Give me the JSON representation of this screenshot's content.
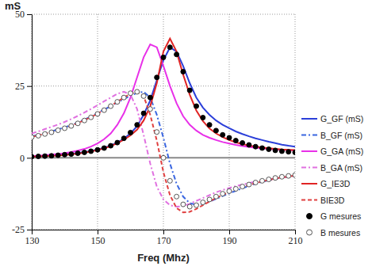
{
  "chart_data": {
    "type": "line",
    "x_label": "Freq (Mhz)",
    "y_label": "mS",
    "x": [
      130,
      132,
      134,
      136,
      138,
      140,
      142,
      144,
      146,
      148,
      150,
      152,
      154,
      156,
      158,
      160,
      162,
      164,
      166,
      168,
      170,
      172,
      174,
      176,
      178,
      180,
      182,
      184,
      186,
      188,
      190,
      192,
      194,
      196,
      198,
      200,
      202,
      204,
      206,
      208,
      210
    ],
    "xlim": [
      130,
      210
    ],
    "xticks": [
      130,
      150,
      170,
      190,
      210
    ],
    "ylim": [
      -25,
      50
    ],
    "yticks": [
      -25,
      0,
      25,
      50
    ],
    "grid": true,
    "legend": "right",
    "series": [
      {
        "name": "G_GF (mS)",
        "type": "line",
        "color": "#2b3fd9",
        "line_style": "solid",
        "values": [
          0.5,
          0.6,
          0.7,
          0.8,
          1.0,
          1.2,
          1.4,
          1.7,
          2.0,
          2.4,
          2.9,
          3.5,
          4.3,
          5.3,
          6.7,
          8.5,
          11,
          15,
          20,
          27,
          34,
          38.5,
          37,
          32,
          26,
          21,
          17.5,
          15,
          13,
          11.5,
          10.3,
          9.2,
          8.3,
          7.5,
          6.8,
          6.2,
          5.6,
          5.1,
          4.6,
          4.2,
          3.9
        ]
      },
      {
        "name": "B_GF (mS)",
        "type": "line",
        "color": "#3a66e0",
        "line_style": "dashdot",
        "values": [
          7.5,
          8,
          8.6,
          9.2,
          9.9,
          10.6,
          11.4,
          12.3,
          13.3,
          14.4,
          15.6,
          16.8,
          18,
          19.3,
          20.5,
          21.6,
          22.6,
          23,
          21,
          15,
          7,
          -2,
          -9,
          -13.5,
          -15.8,
          -16.3,
          -16,
          -15.2,
          -14.3,
          -13.3,
          -12.4,
          -11.5,
          -10.6,
          -9.8,
          -9,
          -8.4,
          -7.8,
          -7.3,
          -6.9,
          -6.5,
          -6.2
        ]
      },
      {
        "name": "G_GA (mS)",
        "type": "line",
        "color": "#e830e8",
        "line_style": "solid",
        "values": [
          0.6,
          0.7,
          0.9,
          1.1,
          1.3,
          1.6,
          2,
          2.5,
          3.1,
          3.9,
          5,
          6.5,
          8.5,
          11.5,
          15.5,
          21,
          28,
          35,
          39.5,
          38.5,
          32,
          25,
          19,
          14.5,
          11.5,
          9.5,
          8,
          7,
          6.2,
          5.5,
          5,
          4.5,
          4.1,
          3.8,
          3.5,
          3.3,
          3.1,
          2.9,
          2.8,
          2.7,
          2.6
        ]
      },
      {
        "name": "B_GA (mS)",
        "type": "line",
        "color": "#e070e0",
        "line_style": "dashdot",
        "values": [
          8.5,
          9.2,
          10,
          10.8,
          11.6,
          12.5,
          13.5,
          14.6,
          15.8,
          17,
          18.3,
          19.7,
          21,
          22.3,
          23,
          22,
          17,
          8,
          -2,
          -10,
          -14.5,
          -16.5,
          -17,
          -16.8,
          -16,
          -15,
          -14,
          -13,
          -12,
          -11.2,
          -10.5,
          -9.9,
          -9.3,
          -8.8,
          -8.3,
          -7.9,
          -7.5,
          -7.2,
          -6.9,
          -6.6,
          -6.3
        ]
      },
      {
        "name": "G_IE3D",
        "type": "line",
        "color": "#e02424",
        "line_style": "solid",
        "values": [
          0.4,
          0.5,
          0.6,
          0.7,
          0.8,
          1.0,
          1.2,
          1.5,
          1.8,
          2.2,
          2.7,
          3.3,
          4.1,
          5.1,
          6.3,
          7.8,
          9.8,
          13,
          18,
          26,
          37,
          41.5,
          37,
          29,
          22,
          16.5,
          12.8,
          10.2,
          8.5,
          7.2,
          6.2,
          5.4,
          4.8,
          4.3,
          3.9,
          3.6,
          3.3,
          3.1,
          2.9,
          2.8,
          2.7
        ]
      },
      {
        "name": "BIE3D",
        "type": "line",
        "color": "#e04040",
        "line_style": "dashed",
        "values": [
          7.3,
          7.8,
          8.4,
          9,
          9.7,
          10.4,
          11.2,
          12.1,
          13.1,
          14.2,
          15.4,
          16.7,
          18.1,
          19.5,
          21,
          22.3,
          23,
          21.5,
          15,
          6,
          -5,
          -13,
          -17.5,
          -19,
          -18.8,
          -17.8,
          -16.5,
          -15.2,
          -14,
          -12.9,
          -11.9,
          -11,
          -10.2,
          -9.5,
          -8.8,
          -8.2,
          -7.7,
          -7.2,
          -6.8,
          -6.5,
          -6.2
        ]
      },
      {
        "name": "G mesures",
        "type": "scatter",
        "color": "#000000",
        "marker": "filled-circle",
        "values": [
          0.4,
          0.5,
          0.6,
          0.7,
          0.9,
          1.1,
          1.3,
          1.6,
          1.9,
          2.3,
          2.8,
          3.4,
          4.2,
          5.3,
          6.8,
          8.8,
          11.5,
          15.5,
          21,
          28,
          35,
          38.5,
          36,
          30,
          23.5,
          18,
          14,
          11.5,
          9.5,
          8,
          7,
          6,
          5.2,
          4.5,
          3.9,
          3.4,
          3,
          2.6,
          2.3,
          2.1,
          1.9
        ]
      },
      {
        "name": "B mesures",
        "type": "scatter",
        "color": "#555555",
        "marker": "open-circle",
        "values": [
          7.2,
          7.7,
          8.3,
          8.9,
          9.6,
          10.3,
          11.1,
          12,
          13,
          14.1,
          15.3,
          16.6,
          18,
          19.5,
          21,
          22.5,
          23,
          21.5,
          17,
          9,
          0,
          -8,
          -13.5,
          -16.2,
          -17,
          -16.5,
          -15.5,
          -14.5,
          -13.5,
          -12.5,
          -11.6,
          -10.8,
          -10,
          -9.3,
          -8.6,
          -8,
          -7.5,
          -7,
          -6.6,
          -6.3,
          -6
        ]
      }
    ]
  }
}
